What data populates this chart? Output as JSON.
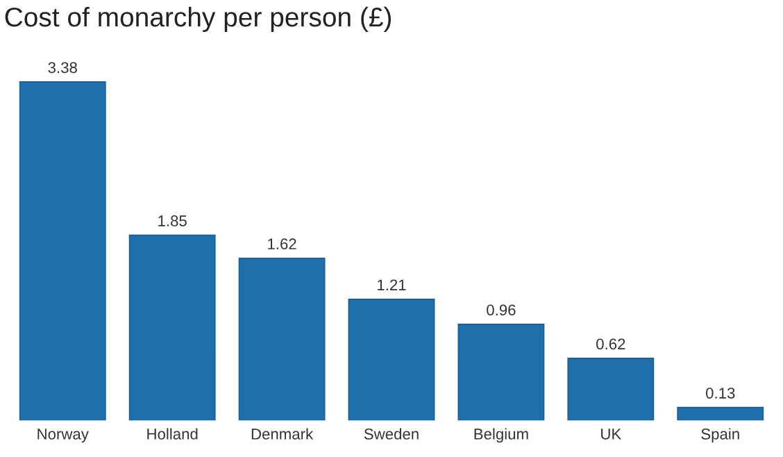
{
  "chart_data": {
    "type": "bar",
    "title": "Cost of monarchy per person (£)",
    "categories": [
      "Norway",
      "Holland",
      "Denmark",
      "Sweden",
      "Belgium",
      "UK",
      "Spain"
    ],
    "values": [
      3.38,
      1.85,
      1.62,
      1.21,
      0.96,
      0.62,
      0.13
    ],
    "color": "#1f6fad",
    "data_labels": true,
    "grid": false,
    "legend": false
  }
}
